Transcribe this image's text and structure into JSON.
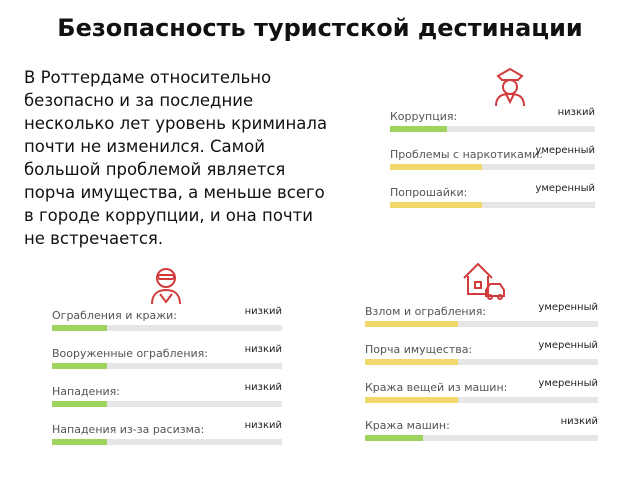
{
  "title": "Безопасность туристской дестинации",
  "description": [
    "В Роттердаме относительно",
    "безопасно и за последние",
    "несколько лет уровень криминала",
    "почти не изменился. Самой",
    "большой проблемой является",
    "порча имущества, а меньше всего",
    "в городе коррупции, и она почти",
    "не встречается."
  ],
  "panels": [
    {
      "items": [
        {
          "label": "Коррупция:",
          "level": "низкий"
        },
        {
          "label": "Проблемы с наркотиками:",
          "level": "умеренный"
        },
        {
          "label": "Попрошайки:",
          "level": "умеренный"
        }
      ]
    },
    {
      "items": [
        {
          "label": "Ограбления и кражи:",
          "level": "низкий"
        },
        {
          "label": "Вооруженные ограбления:",
          "level": "низкий"
        },
        {
          "label": "Нападения:",
          "level": "низкий"
        },
        {
          "label": "Нападения из-за расизма:",
          "level": "низкий"
        }
      ]
    },
    {
      "items": [
        {
          "label": "Взлом и ограбления:",
          "level": "умеренный"
        },
        {
          "label": "Порча имущества:",
          "level": "умеренный"
        },
        {
          "label": "Кража вещей из машин:",
          "level": "умеренный"
        },
        {
          "label": "Кража машин:",
          "level": "низкий"
        }
      ]
    }
  ]
}
